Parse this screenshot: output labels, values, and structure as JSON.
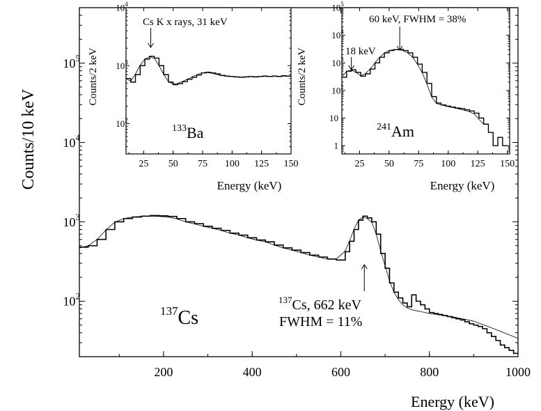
{
  "chart_data": [
    {
      "id": "main",
      "type": "line",
      "xlabel": "Energy (keV)",
      "ylabel": "Counts/10 keV",
      "xlim": [
        10,
        1000
      ],
      "ylim": [
        20,
        500000
      ],
      "yscale": "log",
      "xticks": [
        200,
        400,
        600,
        800,
        1000
      ],
      "yticks": [
        {
          "value": 100,
          "base": "10",
          "exp": "2"
        },
        {
          "value": 1000,
          "base": "10",
          "exp": "3"
        },
        {
          "value": 10000,
          "base": "10",
          "exp": "4"
        },
        {
          "value": 100000,
          "base": "10",
          "exp": "5"
        }
      ],
      "isotope": {
        "mass": "137",
        "symbol": "Cs"
      },
      "annotation": {
        "line1_mass": "137",
        "line1_rest": "Cs, 662 keV",
        "line2": "FWHM = 11%",
        "arrow_x": 650
      },
      "series": [
        {
          "style": "step",
          "x": [
            10,
            30,
            50,
            70,
            90,
            110,
            130,
            150,
            170,
            190,
            210,
            230,
            250,
            270,
            290,
            310,
            330,
            350,
            370,
            390,
            410,
            430,
            450,
            470,
            490,
            510,
            530,
            550,
            570,
            590,
            610,
            620,
            630,
            640,
            650,
            660,
            670,
            680,
            690,
            700,
            710,
            720,
            730,
            740,
            750,
            760,
            770,
            780,
            790,
            800,
            810,
            820,
            830,
            840,
            850,
            860,
            870,
            880,
            890,
            900,
            910,
            920,
            930,
            940,
            950,
            960,
            970,
            980,
            990,
            1000
          ],
          "values": [
            480,
            500,
            600,
            800,
            1000,
            1100,
            1150,
            1180,
            1200,
            1190,
            1170,
            1100,
            1000,
            950,
            880,
            830,
            780,
            720,
            680,
            630,
            590,
            560,
            510,
            470,
            440,
            410,
            380,
            360,
            340,
            330,
            420,
            570,
            800,
            1050,
            1180,
            1120,
            1000,
            700,
            400,
            260,
            170,
            130,
            110,
            95,
            85,
            120,
            100,
            90,
            80,
            72,
            70,
            68,
            66,
            64,
            62,
            60,
            58,
            55,
            52,
            50,
            48,
            45,
            40,
            36,
            32,
            28,
            26,
            24,
            22,
            22
          ]
        },
        {
          "style": "line",
          "x": [
            10,
            30,
            50,
            70,
            90,
            110,
            130,
            150,
            170,
            190,
            210,
            230,
            250,
            270,
            290,
            310,
            330,
            350,
            370,
            390,
            410,
            430,
            450,
            470,
            490,
            510,
            530,
            550,
            570,
            590,
            610,
            620,
            630,
            640,
            650,
            660,
            670,
            680,
            690,
            700,
            710,
            720,
            730,
            740,
            750,
            760,
            770,
            780,
            800,
            850,
            900,
            950,
            1000
          ],
          "values": [
            470,
            500,
            600,
            790,
            990,
            1100,
            1150,
            1170,
            1180,
            1170,
            1150,
            1090,
            1000,
            940,
            880,
            830,
            780,
            720,
            680,
            630,
            590,
            560,
            510,
            470,
            440,
            410,
            380,
            360,
            340,
            340,
            430,
            580,
            810,
            1050,
            1150,
            1100,
            980,
            700,
            430,
            280,
            180,
            130,
            105,
            90,
            82,
            78,
            76,
            74,
            70,
            64,
            56,
            44,
            34
          ]
        }
      ]
    },
    {
      "id": "ba133",
      "type": "line",
      "xlabel": "Energy (keV)",
      "ylabel": "Counts/2 keV",
      "xlim": [
        10,
        150
      ],
      "ylim": [
        30,
        10000
      ],
      "yscale": "log",
      "xticks": [
        25,
        50,
        75,
        100,
        125,
        150
      ],
      "yticks": [
        {
          "value": 100,
          "base": "10",
          "exp": "2"
        },
        {
          "value": 1000,
          "base": "10",
          "exp": "3"
        },
        {
          "value": 10000,
          "base": "10",
          "exp": "4"
        }
      ],
      "isotope": {
        "mass": "133",
        "symbol": "Ba"
      },
      "annotation": {
        "text": "Cs K x rays, 31 keV",
        "arrow_x": 31
      },
      "series": [
        {
          "style": "step",
          "x": [
            10,
            14,
            18,
            22,
            26,
            30,
            34,
            38,
            42,
            46,
            50,
            54,
            58,
            62,
            66,
            70,
            74,
            78,
            82,
            86,
            90,
            94,
            98,
            102,
            106,
            110,
            114,
            118,
            122,
            126,
            130,
            134,
            138,
            142,
            146,
            150
          ],
          "values": [
            600,
            520,
            700,
            1000,
            1300,
            1450,
            1350,
            1000,
            700,
            520,
            470,
            490,
            530,
            580,
            630,
            690,
            750,
            770,
            750,
            720,
            680,
            660,
            650,
            640,
            630,
            640,
            650,
            640,
            650,
            660,
            650,
            660,
            650,
            670,
            660,
            660
          ]
        },
        {
          "style": "line",
          "x": [
            10,
            14,
            18,
            22,
            26,
            30,
            34,
            38,
            42,
            46,
            50,
            54,
            58,
            62,
            66,
            70,
            74,
            78,
            82,
            86,
            90,
            94,
            98,
            102,
            106,
            110,
            114,
            118,
            122,
            126,
            130,
            134,
            138,
            142,
            146,
            150
          ],
          "values": [
            600,
            540,
            720,
            1020,
            1300,
            1430,
            1340,
            1000,
            710,
            530,
            480,
            495,
            535,
            585,
            635,
            695,
            750,
            765,
            745,
            715,
            680,
            660,
            648,
            640,
            632,
            638,
            645,
            642,
            648,
            655,
            650,
            655,
            652,
            660,
            658,
            660
          ]
        }
      ]
    },
    {
      "id": "am241",
      "type": "line",
      "xlabel": "Energy (keV)",
      "ylabel": "Counts/2 keV",
      "xlim": [
        10,
        152
      ],
      "ylim": [
        0.5,
        100000
      ],
      "yscale": "log",
      "xticks": [
        25,
        50,
        75,
        100,
        125,
        150
      ],
      "yticks": [
        {
          "value": 1,
          "base": "1",
          "exp": ""
        },
        {
          "value": 10,
          "base": "10",
          "exp": ""
        },
        {
          "value": 100,
          "base": "10",
          "exp": "2"
        },
        {
          "value": 1000,
          "base": "10",
          "exp": "3"
        },
        {
          "value": 10000,
          "base": "10",
          "exp": "4"
        },
        {
          "value": 100000,
          "base": "10",
          "exp": "5"
        }
      ],
      "isotope": {
        "mass": "241",
        "symbol": "Am"
      },
      "annotations": [
        {
          "text": "18 keV",
          "arrow_x": 18
        },
        {
          "text": "60 keV, FWHM = 38%",
          "arrow_x": 59
        }
      ],
      "series": [
        {
          "style": "step",
          "x": [
            10,
            14,
            18,
            22,
            26,
            30,
            34,
            38,
            42,
            46,
            50,
            54,
            58,
            62,
            66,
            70,
            74,
            78,
            82,
            86,
            90,
            94,
            98,
            102,
            106,
            110,
            114,
            118,
            122,
            126,
            130,
            134,
            138,
            142,
            146,
            150
          ],
          "values": [
            300,
            500,
            560,
            450,
            330,
            400,
            600,
            1000,
            1600,
            2300,
            2800,
            3000,
            3100,
            2800,
            2300,
            1600,
            900,
            450,
            180,
            60,
            35,
            30,
            27,
            25,
            23,
            22,
            20,
            18,
            15,
            10,
            6,
            3,
            1,
            2,
            1,
            1
          ]
        },
        {
          "style": "line",
          "x": [
            10,
            14,
            18,
            22,
            26,
            30,
            34,
            38,
            42,
            46,
            50,
            54,
            58,
            62,
            66,
            70,
            74,
            78,
            82,
            86,
            90,
            94,
            98,
            102,
            106,
            110,
            114,
            118,
            122,
            126,
            130
          ],
          "values": [
            310,
            490,
            550,
            450,
            340,
            410,
            610,
            1000,
            1600,
            2300,
            2800,
            3000,
            3050,
            2750,
            2250,
            1580,
            880,
            440,
            170,
            58,
            34,
            30,
            27,
            25,
            23,
            21,
            19,
            17,
            14,
            9,
            6
          ]
        }
      ]
    }
  ]
}
